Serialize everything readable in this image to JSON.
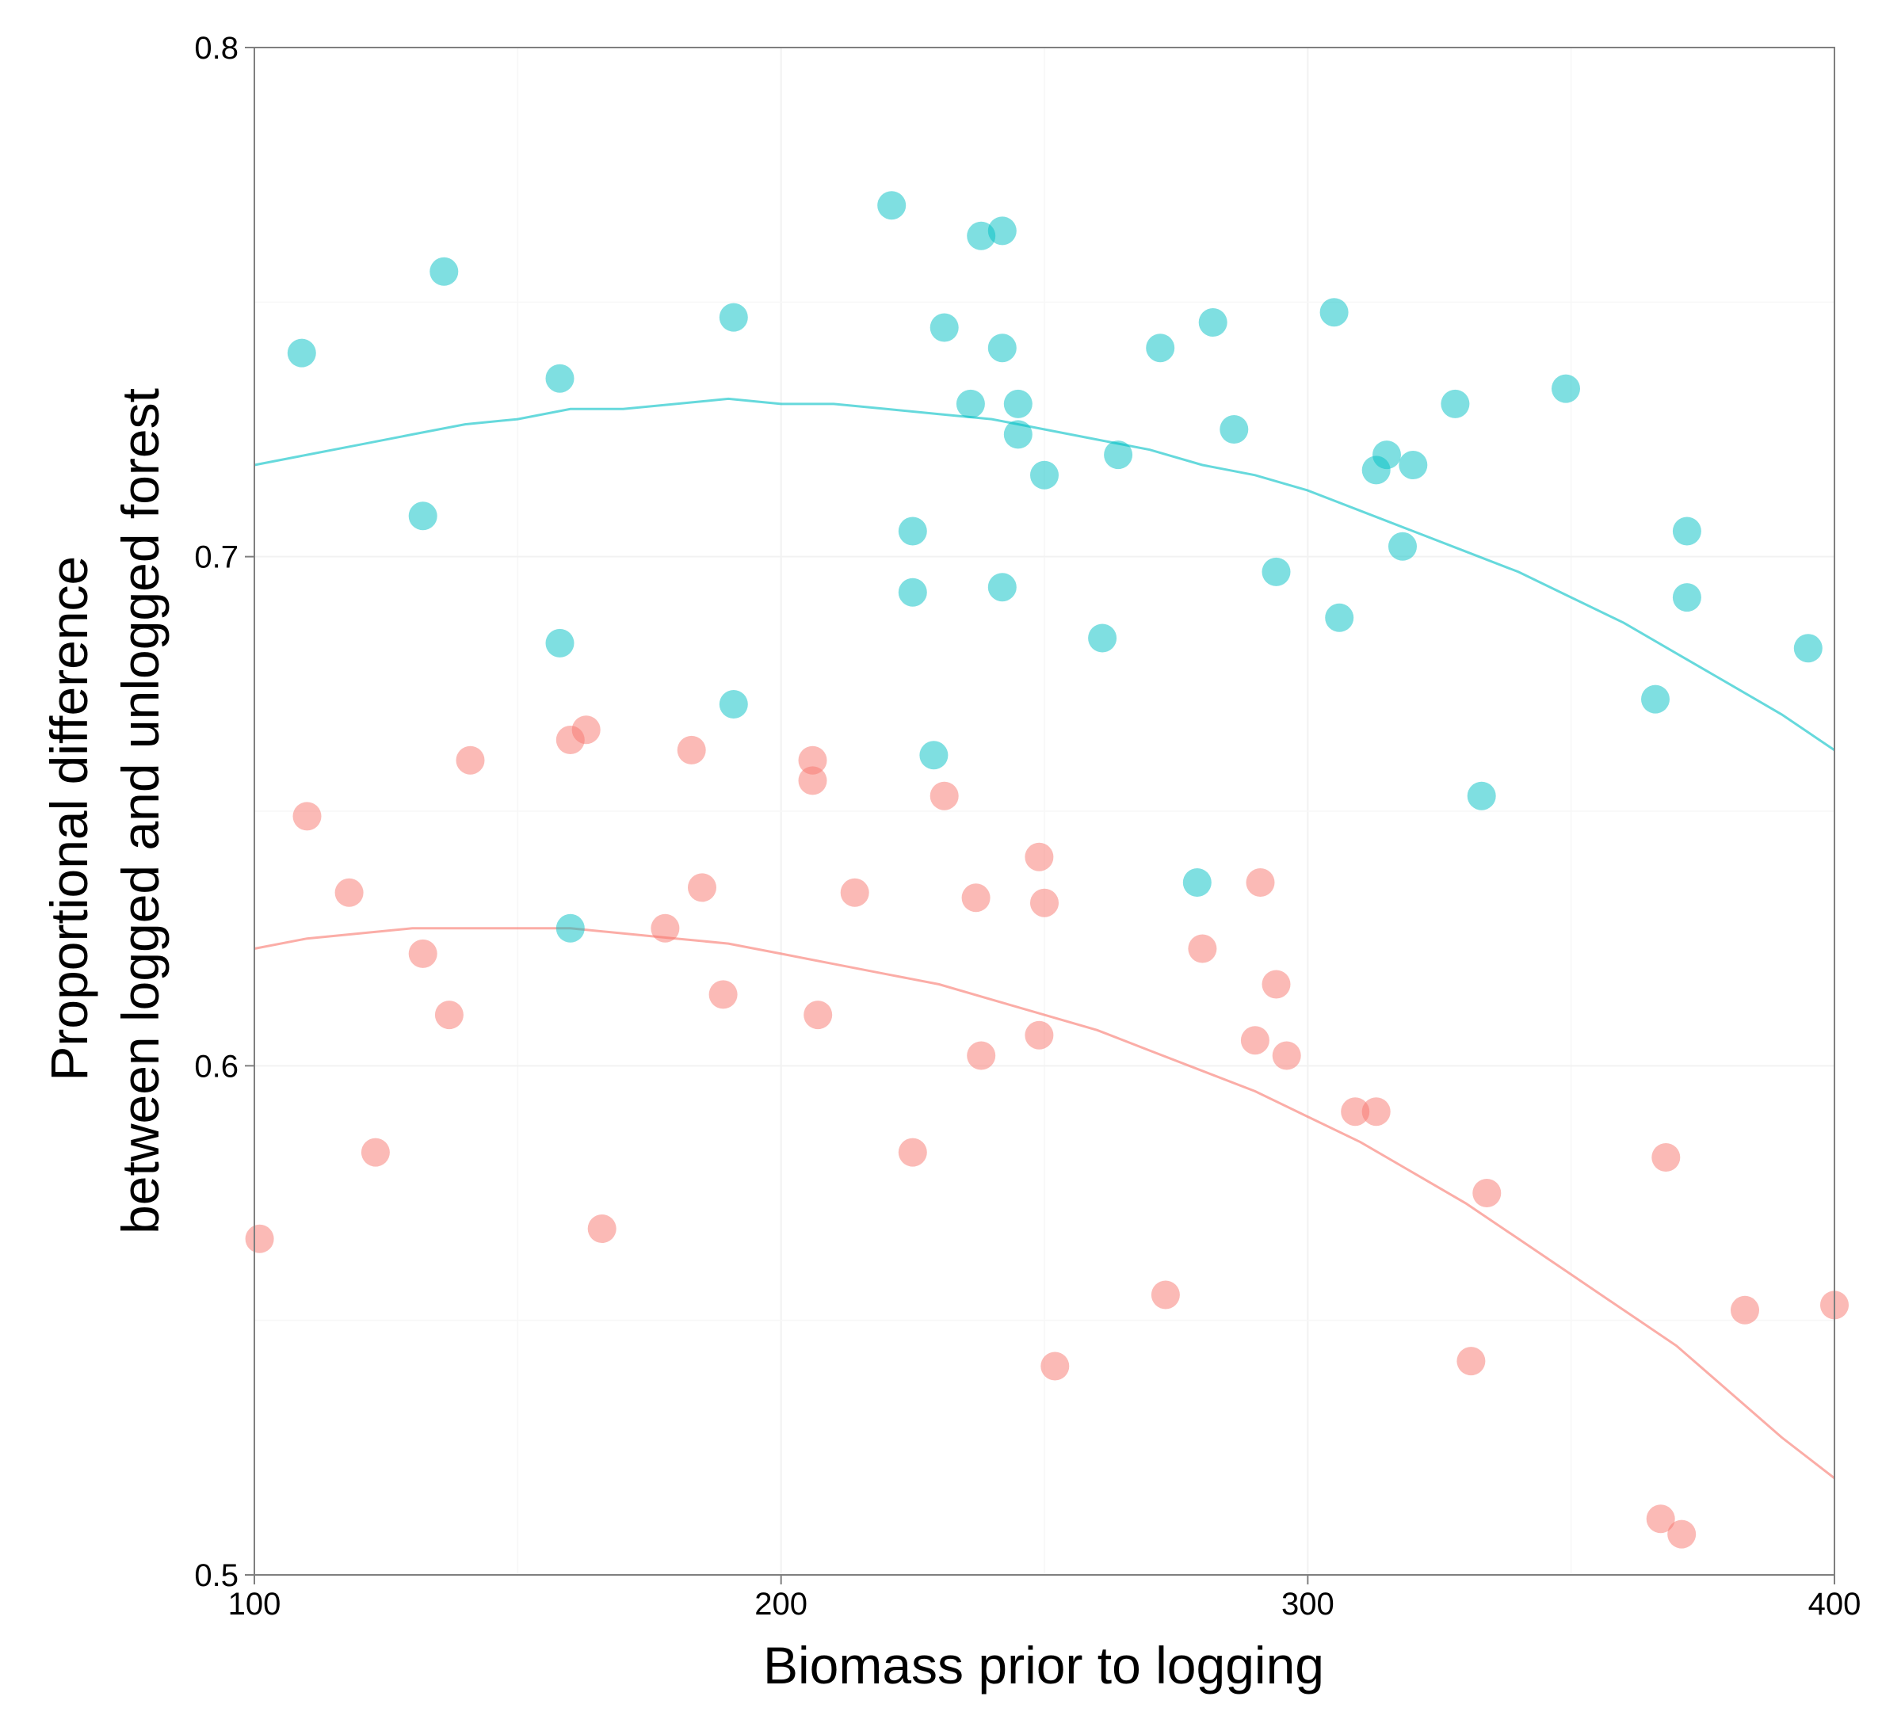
{
  "chart_data": {
    "type": "scatter",
    "title": "",
    "xlabel": "Biomass prior to logging",
    "ylabel": [
      "Proportional difference",
      "between logged and unlogged forest"
    ],
    "xlim": [
      100,
      400
    ],
    "ylim": [
      0.5,
      0.8
    ],
    "x_ticks": [
      100,
      200,
      300,
      400
    ],
    "x_tick_labels": [
      "100",
      "200",
      "300",
      "400"
    ],
    "y_ticks": [
      0.5,
      0.6,
      0.7,
      0.8
    ],
    "y_tick_labels": [
      "0.5",
      "0.6",
      "0.7",
      "0.8"
    ],
    "grid": true,
    "legend": "none",
    "series": [
      {
        "color": "#f8766d",
        "points": [
          [
            101,
            0.566
          ],
          [
            110,
            0.649
          ],
          [
            118,
            0.634
          ],
          [
            123,
            0.583
          ],
          [
            132,
            0.622
          ],
          [
            137,
            0.61
          ],
          [
            141,
            0.66
          ],
          [
            160,
            0.664
          ],
          [
            163,
            0.666
          ],
          [
            166,
            0.568
          ],
          [
            178,
            0.627
          ],
          [
            183,
            0.662
          ],
          [
            185,
            0.635
          ],
          [
            189,
            0.614
          ],
          [
            206,
            0.66
          ],
          [
            206,
            0.656
          ],
          [
            207,
            0.61
          ],
          [
            214,
            0.634
          ],
          [
            225,
            0.583
          ],
          [
            231,
            0.653
          ],
          [
            237,
            0.633
          ],
          [
            238,
            0.602
          ],
          [
            249,
            0.641
          ],
          [
            249,
            0.606
          ],
          [
            250,
            0.632
          ],
          [
            252,
            0.541
          ],
          [
            273,
            0.555
          ],
          [
            280,
            0.623
          ],
          [
            290,
            0.605
          ],
          [
            291,
            0.636
          ],
          [
            294,
            0.616
          ],
          [
            296,
            0.602
          ],
          [
            309,
            0.591
          ],
          [
            313,
            0.591
          ],
          [
            331,
            0.542
          ],
          [
            334,
            0.575
          ],
          [
            367,
            0.511
          ],
          [
            368,
            0.582
          ],
          [
            371,
            0.508
          ],
          [
            383,
            0.552
          ],
          [
            400,
            0.553
          ]
        ],
        "fit": [
          [
            100,
            0.623
          ],
          [
            110,
            0.625
          ],
          [
            120,
            0.626
          ],
          [
            130,
            0.627
          ],
          [
            140,
            0.627
          ],
          [
            150,
            0.627
          ],
          [
            160,
            0.627
          ],
          [
            170,
            0.626
          ],
          [
            180,
            0.625
          ],
          [
            190,
            0.624
          ],
          [
            200,
            0.622
          ],
          [
            210,
            0.62
          ],
          [
            220,
            0.618
          ],
          [
            230,
            0.616
          ],
          [
            240,
            0.613
          ],
          [
            250,
            0.61
          ],
          [
            260,
            0.607
          ],
          [
            270,
            0.603
          ],
          [
            280,
            0.599
          ],
          [
            290,
            0.595
          ],
          [
            300,
            0.59
          ],
          [
            310,
            0.585
          ],
          [
            320,
            0.579
          ],
          [
            330,
            0.573
          ],
          [
            340,
            0.566
          ],
          [
            350,
            0.559
          ],
          [
            360,
            0.552
          ],
          [
            370,
            0.545
          ],
          [
            380,
            0.536
          ],
          [
            390,
            0.527
          ],
          [
            400,
            0.519
          ]
        ]
      },
      {
        "color": "#00bfc4",
        "points": [
          [
            109,
            0.74
          ],
          [
            132,
            0.708
          ],
          [
            136,
            0.756
          ],
          [
            158,
            0.735
          ],
          [
            158,
            0.683
          ],
          [
            160,
            0.627
          ],
          [
            191,
            0.747
          ],
          [
            191,
            0.671
          ],
          [
            221,
            0.769
          ],
          [
            225,
            0.705
          ],
          [
            225,
            0.693
          ],
          [
            229,
            0.661
          ],
          [
            231,
            0.745
          ],
          [
            236,
            0.73
          ],
          [
            238,
            0.763
          ],
          [
            242,
            0.764
          ],
          [
            242,
            0.741
          ],
          [
            242,
            0.694
          ],
          [
            245,
            0.73
          ],
          [
            245,
            0.724
          ],
          [
            250,
            0.716
          ],
          [
            261,
            0.684
          ],
          [
            264,
            0.72
          ],
          [
            272,
            0.741
          ],
          [
            279,
            0.636
          ],
          [
            282,
            0.746
          ],
          [
            286,
            0.725
          ],
          [
            294,
            0.697
          ],
          [
            305,
            0.748
          ],
          [
            306,
            0.688
          ],
          [
            313,
            0.717
          ],
          [
            315,
            0.72
          ],
          [
            318,
            0.702
          ],
          [
            320,
            0.718
          ],
          [
            328,
            0.73
          ],
          [
            333,
            0.653
          ],
          [
            349,
            0.733
          ],
          [
            366,
            0.672
          ],
          [
            372,
            0.705
          ],
          [
            372,
            0.692
          ],
          [
            395,
            0.682
          ]
        ],
        "fit": [
          [
            100,
            0.718
          ],
          [
            110,
            0.72
          ],
          [
            120,
            0.722
          ],
          [
            130,
            0.724
          ],
          [
            140,
            0.726
          ],
          [
            150,
            0.727
          ],
          [
            160,
            0.729
          ],
          [
            170,
            0.729
          ],
          [
            180,
            0.73
          ],
          [
            190,
            0.731
          ],
          [
            200,
            0.73
          ],
          [
            210,
            0.73
          ],
          [
            220,
            0.729
          ],
          [
            230,
            0.728
          ],
          [
            240,
            0.727
          ],
          [
            250,
            0.725
          ],
          [
            260,
            0.723
          ],
          [
            270,
            0.721
          ],
          [
            280,
            0.718
          ],
          [
            290,
            0.716
          ],
          [
            300,
            0.713
          ],
          [
            310,
            0.709
          ],
          [
            320,
            0.705
          ],
          [
            330,
            0.701
          ],
          [
            340,
            0.697
          ],
          [
            350,
            0.692
          ],
          [
            360,
            0.687
          ],
          [
            370,
            0.681
          ],
          [
            380,
            0.675
          ],
          [
            390,
            0.669
          ],
          [
            400,
            0.662
          ]
        ]
      }
    ]
  }
}
